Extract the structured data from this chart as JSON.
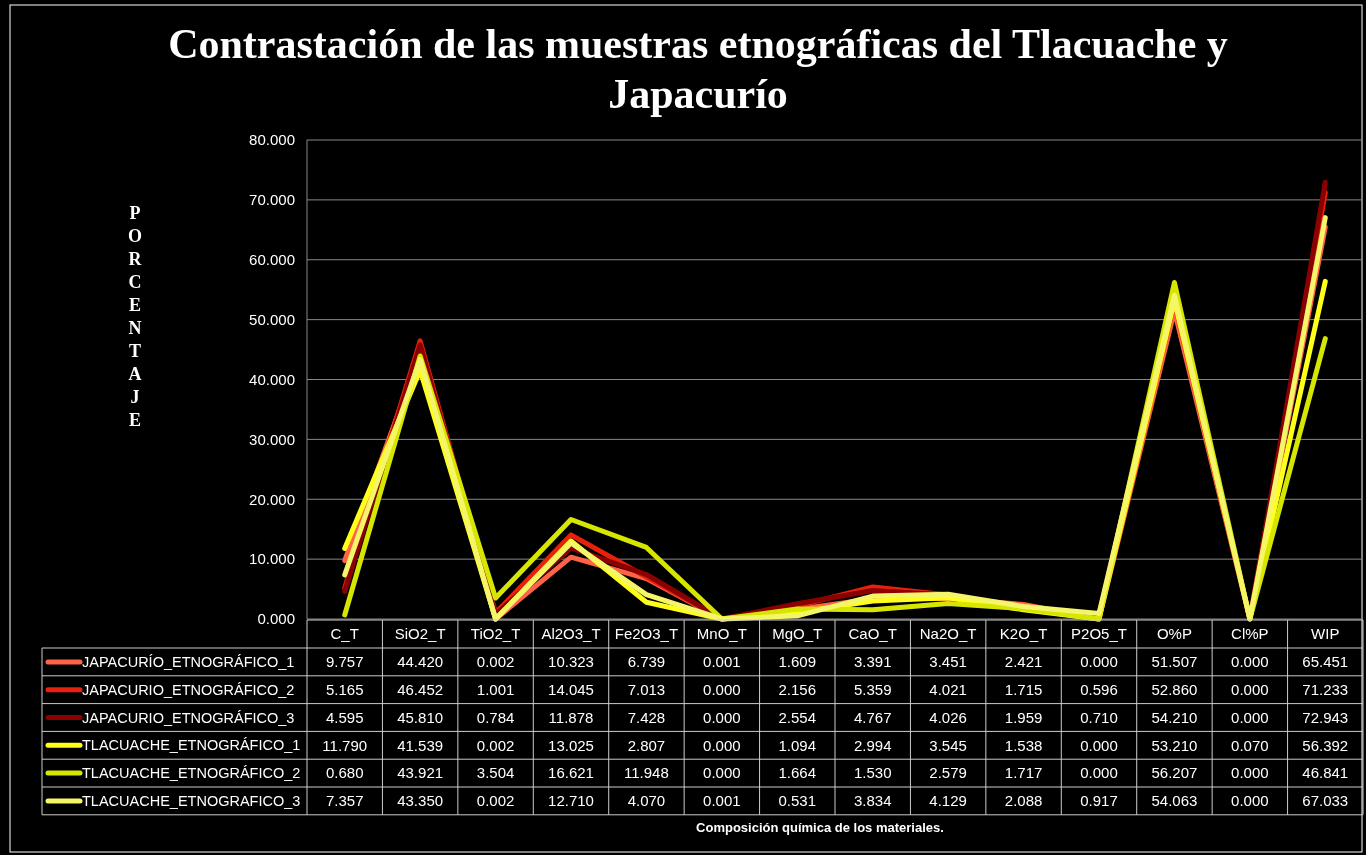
{
  "chart_data": {
    "type": "line",
    "title": "Contrastación de las muestras etnográficas del Tlacuache y Japacurío",
    "annotations": [
      "Composición química de los materiales."
    ],
    "ylabel": "PORCENTAJE",
    "categories": [
      "C_T",
      "SiO2_T",
      "TiO2_T",
      "Al2O3_T",
      "Fe2O3_T",
      "MnO_T",
      "MgO_T",
      "CaO_T",
      "Na2O_T",
      "K2O_T",
      "P2O5_T",
      "O%P",
      "Cl%P",
      "WIP"
    ],
    "ylim": [
      0,
      80
    ],
    "yticks": [
      {
        "value": 0,
        "label": "0.000"
      },
      {
        "value": 10,
        "label": "10.000"
      },
      {
        "value": 20,
        "label": "20.000"
      },
      {
        "value": 30,
        "label": "30.000"
      },
      {
        "value": 40,
        "label": "40.000"
      },
      {
        "value": 50,
        "label": "50.000"
      },
      {
        "value": 60,
        "label": "60.000"
      },
      {
        "value": 70,
        "label": "70.000"
      },
      {
        "value": 80,
        "label": "80.000"
      }
    ],
    "grid": "y",
    "legend": "bottom",
    "marker": "none",
    "line_style": "solid",
    "series": [
      {
        "name": "JAPACURÍO_ETNOGRÁFICO_1",
        "color": "#ff6347",
        "values": [
          9.757,
          44.42,
          0.002,
          10.323,
          6.739,
          0.001,
          1.609,
          3.391,
          3.451,
          2.421,
          0,
          51.507,
          0,
          65.451
        ],
        "value_labels": [
          "9.757",
          "44.420",
          "0.002",
          "10.323",
          "6.739",
          "0.001",
          "1.609",
          "3.391",
          "3.451",
          "2.421",
          "0.000",
          "51.507",
          "0.000",
          "65.451"
        ]
      },
      {
        "name": "JAPACURIO_ETNOGRÁFICO_2",
        "color": "#e8200c",
        "values": [
          5.165,
          46.452,
          1.001,
          14.045,
          7.013,
          0,
          2.156,
          5.359,
          4.021,
          1.715,
          0.596,
          52.86,
          0,
          71.233
        ],
        "value_labels": [
          "5.165",
          "46.452",
          "1.001",
          "14.045",
          "7.013",
          "0.000",
          "2.156",
          "5.359",
          "4.021",
          "1.715",
          "0.596",
          "52.860",
          "0.000",
          "71.233"
        ]
      },
      {
        "name": "JAPACURIO_ETNOGRÁFICO_3",
        "color": "#8b0000",
        "values": [
          4.595,
          45.81,
          0.784,
          11.878,
          7.428,
          0,
          2.554,
          4.767,
          4.026,
          1.959,
          0.71,
          54.21,
          0,
          72.943
        ],
        "value_labels": [
          "4.595",
          "45.810",
          "0.784",
          "11.878",
          "7.428",
          "0.000",
          "2.554",
          "4.767",
          "4.026",
          "1.959",
          "0.710",
          "54.210",
          "0.000",
          "72.943"
        ]
      },
      {
        "name": "TLACUACHE_ETNOGRÁFICO_1",
        "color": "#ffff1a",
        "values": [
          11.79,
          41.539,
          0.002,
          13.025,
          2.807,
          0,
          1.094,
          2.994,
          3.545,
          1.538,
          0,
          53.21,
          0.07,
          56.392
        ],
        "value_labels": [
          "11.790",
          "41.539",
          "0.002",
          "13.025",
          "2.807",
          "0.000",
          "1.094",
          "2.994",
          "3.545",
          "1.538",
          "0.000",
          "53.210",
          "0.070",
          "56.392"
        ]
      },
      {
        "name": "TLACUACHE_ETNOGRÁFICO_2",
        "color": "#d6e600",
        "values": [
          0.68,
          43.921,
          3.504,
          16.621,
          11.948,
          0,
          1.664,
          1.53,
          2.579,
          1.717,
          0,
          56.207,
          0,
          46.841
        ],
        "value_labels": [
          "0.680",
          "43.921",
          "3.504",
          "16.621",
          "11.948",
          "0.000",
          "1.664",
          "1.530",
          "2.579",
          "1.717",
          "0.000",
          "56.207",
          "0.000",
          "46.841"
        ]
      },
      {
        "name": "TLACUACHE_ETNOGRAFICO_3",
        "color": "#f5f56a",
        "values": [
          7.357,
          43.35,
          0.002,
          12.71,
          4.07,
          0.001,
          0.531,
          3.834,
          4.129,
          2.088,
          0.917,
          54.063,
          0,
          67.033
        ],
        "value_labels": [
          "7.357",
          "43.350",
          "0.002",
          "12.710",
          "4.070",
          "0.001",
          "0.531",
          "3.834",
          "4.129",
          "2.088",
          "0.917",
          "54.063",
          "0.000",
          "67.033"
        ]
      }
    ]
  }
}
